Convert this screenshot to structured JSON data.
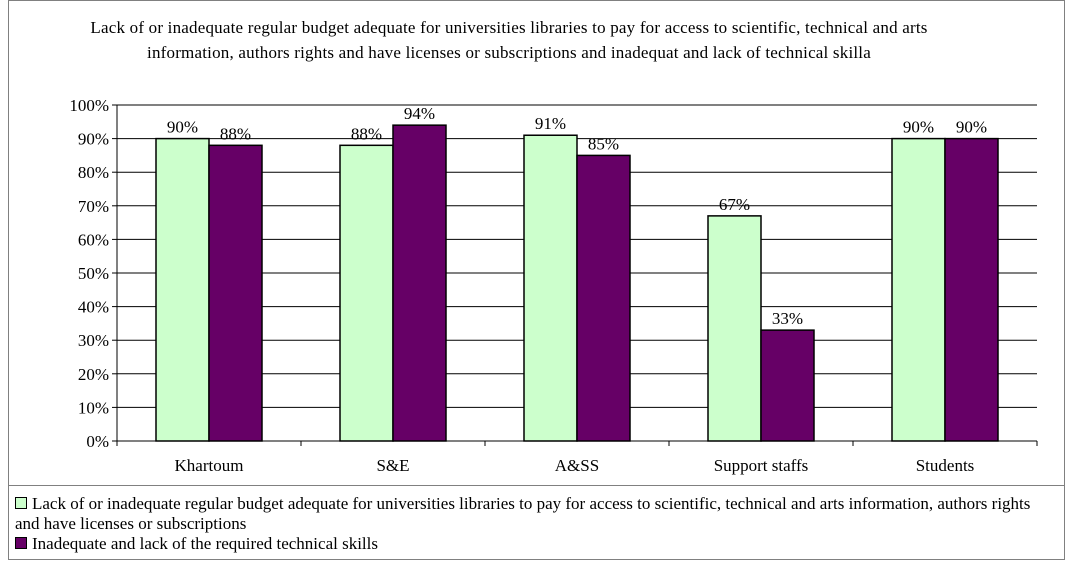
{
  "chart_data": {
    "type": "bar",
    "title": "Lack of or inadequate regular budget adequate for universities libraries to pay for access to scientific, technical and arts information, authors rights and have licenses or subscriptions and inadequat and lack of technical skilla",
    "categories": [
      "Khartoum",
      "S&E",
      "A&SS",
      "Support staffs",
      "Students"
    ],
    "series": [
      {
        "name": "Lack of or inadequate regular budget adequate for universities libraries to pay for access to scientific, technical and arts information, authors rights and have licenses or subscriptions",
        "color": "#ccffcc",
        "values": [
          90,
          88,
          91,
          67,
          90
        ],
        "labels": [
          "90%",
          "88%",
          "91%",
          "67%",
          "90%"
        ]
      },
      {
        "name": "Inadequate and lack of the required technical skills",
        "color": "#660066",
        "values": [
          88,
          94,
          85,
          33,
          90
        ],
        "labels": [
          "88%",
          "94%",
          "85%",
          "33%",
          "90%"
        ]
      }
    ],
    "ylim": [
      0,
      100
    ],
    "yticks": [
      "0%",
      "10%",
      "20%",
      "30%",
      "40%",
      "50%",
      "60%",
      "70%",
      "80%",
      "90%",
      "100%"
    ],
    "grid": true,
    "legend_position": "bottom"
  }
}
